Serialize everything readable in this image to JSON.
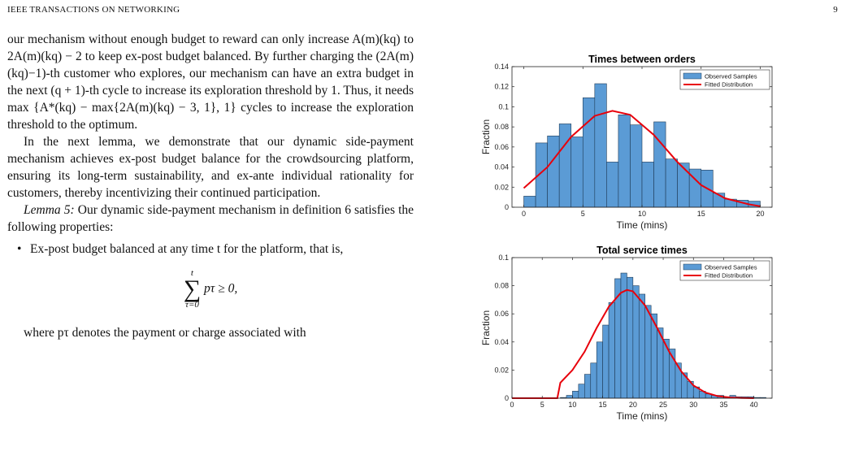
{
  "header": {
    "journal": "IEEE TRANSACTIONS ON NETWORKING",
    "page": "9"
  },
  "text": {
    "p1": "our mechanism without enough budget to reward can only increase A(m)(kq) to 2A(m)(kq) − 2 to keep ex-post budget balanced. By further charging the (2A(m)(kq)−1)-th customer who explores, our mechanism can have an extra budget in the next (q + 1)-th cycle to increase its exploration threshold by 1. Thus, it needs max {A*(kq) − max{2A(m)(kq) − 3, 1}, 1} cycles to increase the exploration threshold to the optimum.",
    "p2": "In the next lemma, we demonstrate that our dynamic side-payment mechanism achieves ex-post budget balance for the crowdsourcing platform, ensuring its long-term sustainability, and ex-ante individual rationality for customers, thereby incentivizing their continued participation.",
    "lemma_label": "Lemma 5:",
    "lemma_body": " Our dynamic side-payment mechanism in definition 6 satisfies the following properties:",
    "bullet1": "Ex-post budget balanced at any time t for the platform, that is,",
    "eq_top": "t",
    "eq_sig": "∑",
    "eq_bot": "τ=0",
    "eq_rest": "pτ ≥ 0,",
    "p_last": "where pτ denotes the payment or charge associated with"
  },
  "colors": {
    "bar": "#5b9bd5",
    "bar_edge": "#1f3b57",
    "line": "#e8000b"
  },
  "chart_data": [
    {
      "type": "bar",
      "title": "Times between orders",
      "xlabel": "Time (mins)",
      "ylabel": "Fraction",
      "xlim": [
        -1,
        21
      ],
      "ylim": [
        0,
        0.14
      ],
      "xticks": [
        0,
        5,
        10,
        15,
        20
      ],
      "yticks": [
        0,
        0.02,
        0.04,
        0.06,
        0.08,
        0.1,
        0.12,
        0.14
      ],
      "ytick_labels": [
        "0",
        "0.02",
        "0.04",
        "0.06",
        "0.08",
        "0.1",
        "0.12",
        "0.14"
      ],
      "bin_start": 0,
      "bin_width": 1,
      "values": [
        0.011,
        0.064,
        0.071,
        0.083,
        0.07,
        0.109,
        0.123,
        0.045,
        0.092,
        0.082,
        0.045,
        0.085,
        0.048,
        0.044,
        0.038,
        0.037,
        0.014,
        0.008,
        0.007,
        0.006
      ],
      "fitted_x": [
        0,
        2,
        4,
        6,
        7.5,
        9,
        11,
        13,
        15,
        17,
        19,
        20
      ],
      "fitted_y": [
        0.019,
        0.04,
        0.07,
        0.091,
        0.096,
        0.092,
        0.072,
        0.045,
        0.022,
        0.009,
        0.003,
        0.001
      ],
      "legend": [
        "Observed Samples",
        "Fitted Distribution"
      ],
      "legend_position": "top-right"
    },
    {
      "type": "bar",
      "title": "Total service times",
      "xlabel": "Time (mins)",
      "ylabel": "Fraction",
      "xlim": [
        0,
        43
      ],
      "ylim": [
        0,
        0.1
      ],
      "xticks": [
        0,
        5,
        10,
        15,
        20,
        25,
        30,
        35,
        40
      ],
      "yticks": [
        0,
        0.02,
        0.04,
        0.06,
        0.08,
        0.1
      ],
      "ytick_labels": [
        "0",
        "0.02",
        "0.04",
        "0.06",
        "0.08",
        "0.1"
      ],
      "bin_start": 8,
      "bin_width": 1,
      "values": [
        0.0005,
        0.002,
        0.005,
        0.01,
        0.017,
        0.025,
        0.04,
        0.052,
        0.068,
        0.085,
        0.089,
        0.086,
        0.08,
        0.074,
        0.066,
        0.06,
        0.05,
        0.042,
        0.035,
        0.025,
        0.018,
        0.012,
        0.008,
        0.005,
        0.003,
        0.002,
        0.002,
        0.001,
        0.002,
        0.001,
        0.001,
        0.001,
        0.0005,
        0.0005
      ],
      "fitted_x": [
        0,
        7.5,
        8,
        10,
        12,
        14,
        16,
        18,
        19,
        20,
        22,
        24,
        26,
        28,
        30,
        32,
        34,
        36,
        38,
        40
      ],
      "fitted_y": [
        0,
        0,
        0.011,
        0.02,
        0.033,
        0.05,
        0.065,
        0.075,
        0.077,
        0.076,
        0.066,
        0.05,
        0.033,
        0.019,
        0.009,
        0.004,
        0.0015,
        0.0005,
        0.0002,
        0
      ],
      "legend": [
        "Observed Samples",
        "Fitted Distribution"
      ],
      "legend_position": "top-right"
    }
  ]
}
